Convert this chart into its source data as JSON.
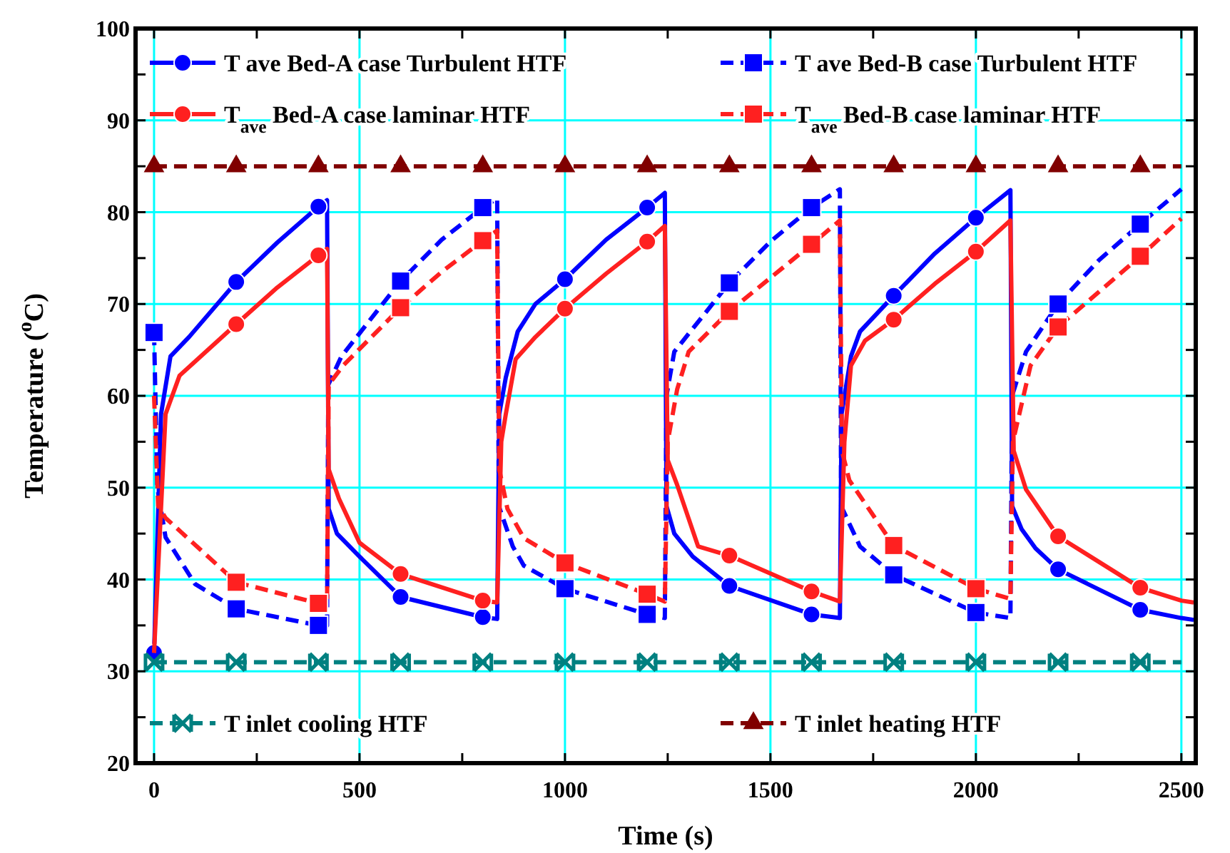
{
  "chart_data": {
    "type": "line",
    "xlabel": "Time (s)",
    "ylabel": "Temperature ($^{o}$C)",
    "xlim": [
      -45,
      2535
    ],
    "ylim": [
      20,
      100
    ],
    "xticks": [
      0,
      {
        "value": 250,
        "label": null
      },
      500,
      {
        "value": 750,
        "label": null
      },
      1000,
      {
        "value": 1250,
        "label": null
      },
      1500,
      {
        "value": 1750,
        "label": null
      },
      2000,
      {
        "value": 2250,
        "label": null
      },
      2500
    ],
    "yticks": [
      20,
      {
        "value": 25,
        "label": null
      },
      30,
      {
        "value": 35,
        "label": null
      },
      40,
      {
        "value": 45,
        "label": null
      },
      50,
      {
        "value": 55,
        "label": null
      },
      60,
      {
        "value": 65,
        "label": null
      },
      70,
      {
        "value": 75,
        "label": null
      },
      80,
      {
        "value": 85,
        "label": null
      },
      90,
      {
        "value": 95,
        "label": null
      },
      100
    ],
    "grid": true,
    "legend": "top",
    "series": [
      {
        "name": "T ave Bed-A case Turbulent HTF",
        "color": "#0000ff",
        "line_style": "solid",
        "x": [
          0,
          17,
          40,
          85,
          200,
          300,
          400,
          421,
          425,
          445,
          500,
          600,
          800,
          835,
          840,
          856,
          885,
          928,
          1000,
          1100,
          1200,
          1243,
          1247,
          1266,
          1311,
          1400,
          1600,
          1669,
          1673,
          1696,
          1718,
          1800,
          1900,
          2000,
          2084,
          2088,
          2111,
          2145,
          2200,
          2400,
          2500,
          2530
        ],
        "values": [
          32,
          58,
          64.3,
          66.4,
          72.4,
          76.7,
          80.6,
          81.3,
          47.7,
          45,
          42.5,
          38.1,
          35.9,
          35.7,
          58,
          62,
          67,
          70,
          72.7,
          77,
          80.5,
          82.1,
          48,
          45,
          42.5,
          39.3,
          36.2,
          35.8,
          58,
          64.3,
          67,
          70.9,
          75.5,
          79.4,
          82.4,
          48,
          45.5,
          43.4,
          41.1,
          36.7,
          35.8,
          35.6
        ]
      },
      {
        "type": "scatter",
        "color": "#0000ff",
        "marker": "circle",
        "x": [
          0,
          200,
          400,
          600,
          800,
          1000,
          1200,
          1400,
          1600,
          1800,
          2000,
          2200,
          2400
        ],
        "values": [
          32,
          72.4,
          80.6,
          38.1,
          35.9,
          72.7,
          80.5,
          39.3,
          36.2,
          70.9,
          79.4,
          41.1,
          36.7
        ]
      },
      {
        "name": "T ave Bed-B case Turbulent HTF",
        "color": "#0000ff",
        "line_style": "dashed",
        "x": [
          0,
          8,
          28,
          100,
          200,
          400,
          421,
          424,
          456,
          600,
          700,
          800,
          835,
          839,
          873,
          900,
          1000,
          1200,
          1243,
          1247,
          1266,
          1400,
          1500,
          1600,
          1669,
          1672,
          1718,
          1800,
          2000,
          2084,
          2088,
          2122,
          2200,
          2300,
          2400,
          2500
        ],
        "values": [
          66.9,
          50,
          44.6,
          39.5,
          36.8,
          35,
          35,
          61.2,
          64.3,
          72.5,
          77,
          80.5,
          81.5,
          48,
          43.6,
          41.5,
          39,
          36.2,
          35.8,
          60,
          64.8,
          72.3,
          76.8,
          80.5,
          82.5,
          48,
          43.6,
          40.5,
          36.4,
          35.8,
          60,
          64.8,
          70,
          74.8,
          78.7,
          82.5
        ]
      },
      {
        "type": "scatter",
        "color": "#0000ff",
        "marker": "square",
        "x": [
          0,
          200,
          400,
          600,
          800,
          1000,
          1200,
          1400,
          1600,
          1800,
          2000,
          2200,
          2400
        ],
        "values": [
          66.9,
          36.8,
          35,
          72.5,
          80.5,
          39,
          36.2,
          72.3,
          80.5,
          40.5,
          36.4,
          70,
          78.7
        ]
      },
      {
        "name": "T$_{ave}$ Bed-A case laminar HTF",
        "color": "#ff2020",
        "line_style": "solid",
        "x": [
          0,
          28,
          62,
          200,
          300,
          400,
          421,
          425,
          450,
          500,
          600,
          800,
          835,
          845,
          856,
          880,
          928,
          1000,
          1100,
          1200,
          1243,
          1250,
          1273,
          1324,
          1400,
          1600,
          1669,
          1680,
          1696,
          1730,
          1800,
          1900,
          2000,
          2084,
          2092,
          2122,
          2200,
          2400,
          2500,
          2530
        ],
        "values": [
          32,
          58,
          62.2,
          67.8,
          71.8,
          75.3,
          76,
          52,
          48.8,
          44,
          40.6,
          37.7,
          37.5,
          55,
          58,
          64,
          66.4,
          69.5,
          73.3,
          76.8,
          78.5,
          53,
          50.3,
          43.6,
          42.6,
          38.7,
          37.6,
          55,
          63.3,
          66,
          68.3,
          72.2,
          75.7,
          79.1,
          54,
          49.8,
          44.7,
          39.1,
          37.7,
          37.5
        ]
      },
      {
        "type": "scatter",
        "color": "#ff2020",
        "marker": "circle",
        "x": [
          200,
          400,
          600,
          800,
          1000,
          1200,
          1400,
          1600,
          1800,
          2000,
          2200,
          2400
        ],
        "values": [
          67.8,
          75.3,
          40.6,
          37.7,
          69.5,
          76.8,
          42.6,
          38.7,
          68.3,
          75.7,
          44.7,
          39.1
        ]
      },
      {
        "name": "T$_{ave}$ Bed-B case laminar HTF",
        "color": "#ff2020",
        "line_style": "dashed",
        "x": [
          0,
          10,
          28,
          200,
          400,
          421,
          425,
          460,
          600,
          700,
          800,
          835,
          840,
          860,
          900,
          1000,
          1200,
          1243,
          1250,
          1273,
          1301,
          1400,
          1600,
          1669,
          1674,
          1692,
          1800,
          2000,
          2084,
          2090,
          2133,
          2200,
          2400,
          2500
        ],
        "values": [
          60,
          48,
          46.7,
          39.7,
          37.4,
          37.2,
          61.2,
          63.3,
          69.6,
          73.5,
          76.9,
          78,
          52,
          47.7,
          44.5,
          41.8,
          38.4,
          37.6,
          55,
          60.7,
          64.8,
          69.2,
          76.5,
          79.1,
          54,
          50.8,
          43.7,
          39,
          37.9,
          55,
          63.3,
          67.5,
          75.2,
          79.3
        ]
      },
      {
        "type": "scatter",
        "color": "#ff2020",
        "marker": "square",
        "x": [
          200,
          400,
          600,
          800,
          1000,
          1200,
          1400,
          1600,
          1800,
          2000,
          2200,
          2400
        ],
        "values": [
          39.7,
          37.4,
          69.6,
          76.9,
          41.8,
          38.4,
          69.2,
          76.5,
          43.7,
          39,
          67.5,
          75.2
        ]
      },
      {
        "name": "T inlet cooling HTF",
        "color": "#008080",
        "line_style": "dashed",
        "x": [
          0,
          2500
        ],
        "values": [
          31,
          31
        ]
      },
      {
        "type": "scatter",
        "color": "#008080",
        "marker": "cross",
        "x": [
          0,
          200,
          400,
          600,
          800,
          1000,
          1200,
          1400,
          1600,
          1800,
          2000,
          2200,
          2400
        ],
        "values": [
          31,
          31,
          31,
          31,
          31,
          31,
          31,
          31,
          31,
          31,
          31,
          31,
          31
        ]
      },
      {
        "name": "T inlet  heating HTF",
        "color": "#800000",
        "line_style": "dashed",
        "x": [
          0,
          2500
        ],
        "values": [
          85,
          85
        ]
      },
      {
        "type": "scatter",
        "color": "#800000",
        "marker": "triangle",
        "x": [
          0,
          200,
          400,
          600,
          800,
          1000,
          1200,
          1400,
          1600,
          1800,
          2000,
          2200,
          2400
        ],
        "values": [
          85,
          85,
          85,
          85,
          85,
          85,
          85,
          85,
          85,
          85,
          85,
          85,
          85
        ]
      }
    ]
  }
}
